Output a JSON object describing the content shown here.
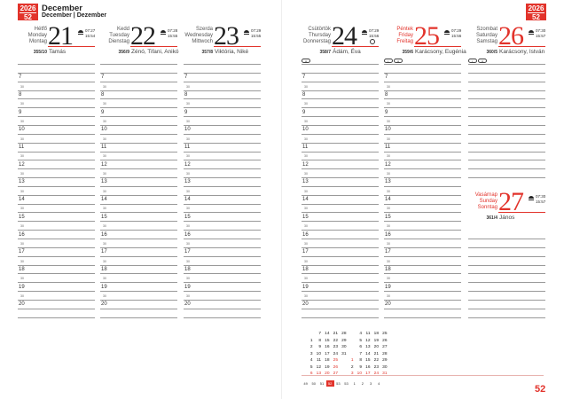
{
  "header": {
    "year": "2026",
    "week": "52",
    "month": "December",
    "month_translations": "December | Dezember"
  },
  "accent_color": "#e2332b",
  "hours": [
    "7",
    "8",
    "9",
    "10",
    "11",
    "12",
    "13",
    "14",
    "15",
    "16",
    "17",
    "18",
    "19",
    "20"
  ],
  "half_label": "30",
  "days": [
    {
      "names": [
        "Hétfő",
        "Monday",
        "Montag"
      ],
      "num": "21",
      "sunrise": "07:27",
      "sunset": "15:54",
      "count": "355/10",
      "nameday": "Tamás",
      "red": false,
      "icons": []
    },
    {
      "names": [
        "Kedd",
        "Tuesday",
        "Dienstag"
      ],
      "num": "22",
      "sunrise": "07:28",
      "sunset": "15:55",
      "count": "356/9",
      "nameday": "Zénó, Tifani, Anikó",
      "red": false,
      "icons": []
    },
    {
      "names": [
        "Szerda",
        "Wednesday",
        "Mittwoch"
      ],
      "num": "23",
      "sunrise": "07:29",
      "sunset": "15:55",
      "count": "357/8",
      "nameday": "Viktória, Niké",
      "red": false,
      "icons": []
    },
    {
      "names": [
        "Csütörtök",
        "Thursday",
        "Donnerstag"
      ],
      "num": "24",
      "sunrise": "07:29",
      "sunset": "15:56",
      "count": "358/7",
      "nameday": "Ádám, Éva",
      "red": false,
      "icons": [
        "a"
      ],
      "moon": "full-moon"
    },
    {
      "names": [
        "Péntek",
        "Friday",
        "Freitag"
      ],
      "num": "25",
      "sunrise": "07:29",
      "sunset": "15:56",
      "count": "359/6",
      "nameday": "Karácsony, Eugénia",
      "red": true,
      "icons": [
        "b",
        "a"
      ]
    },
    {
      "names": [
        "Szombat",
        "Saturday",
        "Samstag"
      ],
      "num": "26",
      "sunrise": "07:30",
      "sunset": "15:57",
      "count": "360/5",
      "nameday": "Karácsony, István",
      "red": true,
      "icons": [
        "b",
        "a"
      ]
    },
    {
      "names": [
        "Vasárnap",
        "Sunday",
        "Sonntag"
      ],
      "num": "27",
      "sunrise": "07:30",
      "sunset": "15:57",
      "count": "361/4",
      "nameday": "János",
      "red": true,
      "icons": []
    }
  ],
  "mini_calendar": {
    "december_2026": [
      [
        "",
        "7",
        "14",
        "21",
        "28"
      ],
      [
        "1",
        "8",
        "15",
        "22",
        "29"
      ],
      [
        "2",
        "9",
        "16",
        "23",
        "30"
      ],
      [
        "3",
        "10",
        "17",
        "24",
        "31"
      ],
      [
        "4",
        "11",
        "18",
        "25",
        ""
      ],
      [
        "5",
        "12",
        "19",
        "26",
        ""
      ],
      [
        "6",
        "13",
        "20",
        "27",
        ""
      ]
    ],
    "january_2027": [
      [
        "",
        "4",
        "11",
        "18",
        "25"
      ],
      [
        "",
        "5",
        "12",
        "19",
        "26"
      ],
      [
        "",
        "6",
        "13",
        "20",
        "27"
      ],
      [
        "",
        "7",
        "14",
        "21",
        "28"
      ],
      [
        "1",
        "8",
        "15",
        "22",
        "29"
      ],
      [
        "2",
        "9",
        "16",
        "23",
        "30"
      ],
      [
        "3",
        "10",
        "17",
        "24",
        "31"
      ]
    ],
    "week_numbers": [
      "49",
      "50",
      "51",
      "52",
      "53",
      "53",
      "1",
      "2",
      "3",
      "4"
    ],
    "current_week": "52"
  },
  "page_number": "52"
}
